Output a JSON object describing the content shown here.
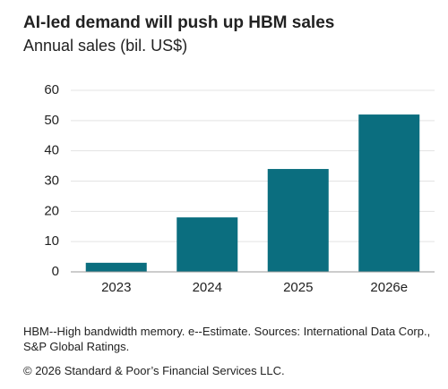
{
  "chart_data": {
    "type": "bar",
    "title": "AI-led demand will push up HBM sales",
    "subtitle": "Annual sales (bil. US$)",
    "categories": [
      "2023",
      "2024",
      "2025",
      "2026e"
    ],
    "values": [
      3,
      18,
      34,
      52
    ],
    "color": "#0b6e7f",
    "ylim": [
      0,
      60
    ],
    "yticks": [
      0,
      10,
      20,
      30,
      40,
      50,
      60
    ],
    "grid": true,
    "notes": "HBM--High bandwidth memory. e--Estimate. Sources: International Data Corp., S&P Global Ratings.",
    "copyright": "© 2026 Standard & Poor’s Financial Services LLC."
  }
}
